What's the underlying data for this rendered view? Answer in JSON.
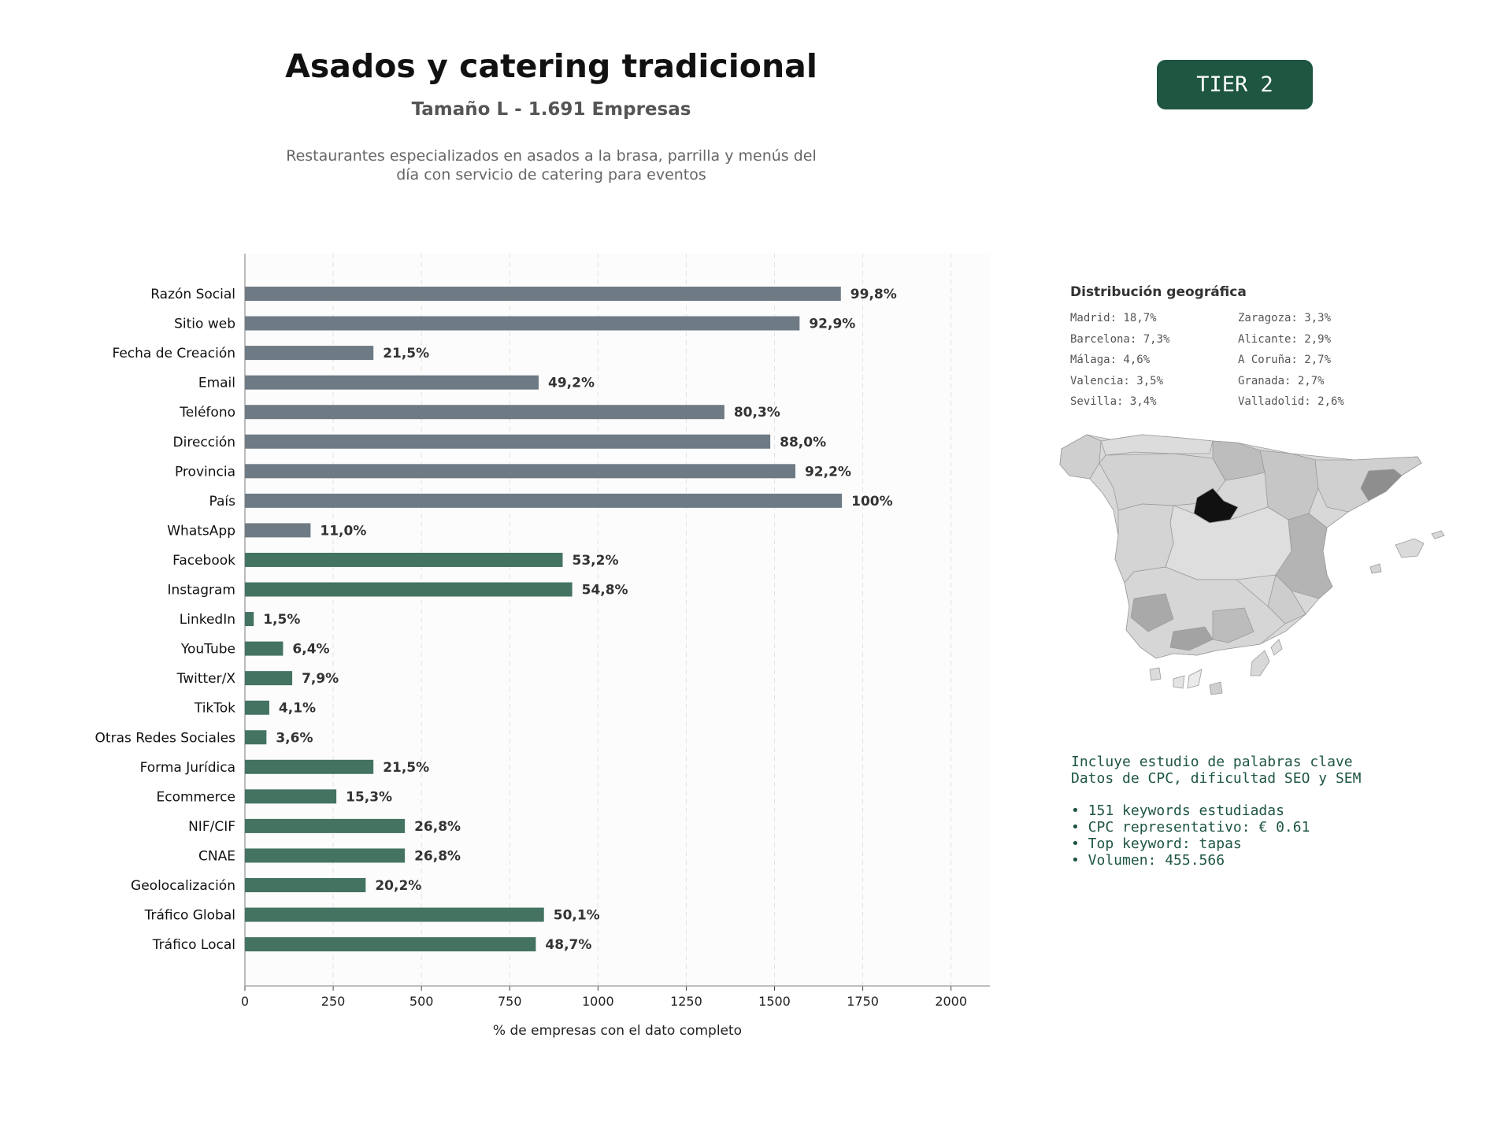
{
  "header": {
    "title": "Asados y catering tradicional",
    "subtitle": "Tamaño L - 1.691 Empresas",
    "description_line1": "Restaurantes especializados en asados a la brasa, parrilla y menús del",
    "description_line2": "día con servicio de catering para eventos",
    "tier": "TIER 2"
  },
  "colors": {
    "grey_bar": "#6e7a84",
    "green_bar": "#447461",
    "accent": "#1e5641"
  },
  "chart_data": {
    "type": "bar",
    "orientation": "horizontal",
    "xlabel": "% de empresas con el dato completo",
    "xlim": [
      0,
      2110
    ],
    "xticks": [
      0,
      250,
      500,
      750,
      1000,
      1250,
      1500,
      1750,
      2000
    ],
    "grid": "vertical dashed",
    "bars": [
      {
        "category": "Razón Social",
        "value": 1688,
        "label": "99,8%",
        "group": "grey"
      },
      {
        "category": "Sitio web",
        "value": 1571,
        "label": "92,9%",
        "group": "grey"
      },
      {
        "category": "Fecha de Creación",
        "value": 364,
        "label": "21,5%",
        "group": "grey"
      },
      {
        "category": "Email",
        "value": 832,
        "label": "49,2%",
        "group": "grey"
      },
      {
        "category": "Teléfono",
        "value": 1358,
        "label": "80,3%",
        "group": "grey"
      },
      {
        "category": "Dirección",
        "value": 1488,
        "label": "88,0%",
        "group": "grey"
      },
      {
        "category": "Provincia",
        "value": 1559,
        "label": "92,2%",
        "group": "grey"
      },
      {
        "category": "País",
        "value": 1691,
        "label": "100%",
        "group": "grey"
      },
      {
        "category": "WhatsApp",
        "value": 186,
        "label": "11,0%",
        "group": "grey"
      },
      {
        "category": "Facebook",
        "value": 900,
        "label": "53,2%",
        "group": "green"
      },
      {
        "category": "Instagram",
        "value": 927,
        "label": "54,8%",
        "group": "green"
      },
      {
        "category": "LinkedIn",
        "value": 25,
        "label": "1,5%",
        "group": "green"
      },
      {
        "category": "YouTube",
        "value": 108,
        "label": "6,4%",
        "group": "green"
      },
      {
        "category": "Twitter/X",
        "value": 134,
        "label": "7,9%",
        "group": "green"
      },
      {
        "category": "TikTok",
        "value": 69,
        "label": "4,1%",
        "group": "green"
      },
      {
        "category": "Otras Redes Sociales",
        "value": 61,
        "label": "3,6%",
        "group": "green"
      },
      {
        "category": "Forma Jurídica",
        "value": 364,
        "label": "21,5%",
        "group": "green"
      },
      {
        "category": "Ecommerce",
        "value": 259,
        "label": "15,3%",
        "group": "green"
      },
      {
        "category": "NIF/CIF",
        "value": 453,
        "label": "26,8%",
        "group": "green"
      },
      {
        "category": "CNAE",
        "value": 453,
        "label": "26,8%",
        "group": "green"
      },
      {
        "category": "Geolocalización",
        "value": 342,
        "label": "20,2%",
        "group": "green"
      },
      {
        "category": "Tráfico Global",
        "value": 847,
        "label": "50,1%",
        "group": "green"
      },
      {
        "category": "Tráfico Local",
        "value": 824,
        "label": "48,7%",
        "group": "green"
      }
    ]
  },
  "geo": {
    "title": "Distribución geográfica",
    "items": [
      "Madrid: 18,7%",
      "Zaragoza: 3,3%",
      "Barcelona: 7,3%",
      "Alicante: 2,9%",
      "Málaga: 4,6%",
      "A Coruña: 2,7%",
      "Valencia: 3,5%",
      "Granada: 2,7%",
      "Sevilla: 3,4%",
      "Valladolid: 2,6%"
    ]
  },
  "keywords": {
    "line1": "Incluye estudio de palabras clave",
    "line2": "Datos de CPC, dificultad SEO y SEM",
    "bullets": [
      "• 151 keywords estudiadas",
      "• CPC representativo: € 0.61",
      "• Top keyword: tapas",
      "• Volumen: 455.566"
    ]
  }
}
